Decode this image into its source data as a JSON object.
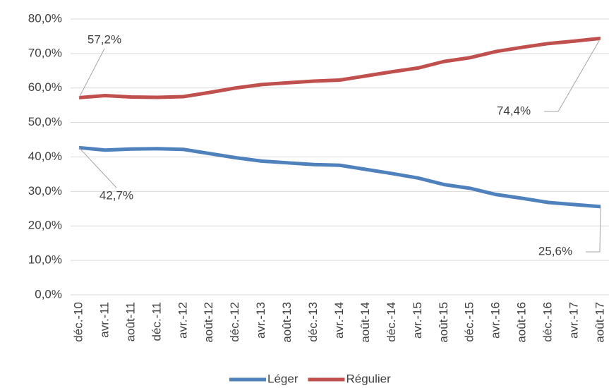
{
  "chart_data": {
    "type": "line",
    "categories": [
      "déc.-10",
      "avr.-11",
      "août-11",
      "déc.-11",
      "avr.-12",
      "août-12",
      "déc.-12",
      "avr.-13",
      "août-13",
      "déc.-13",
      "avr.-14",
      "août-14",
      "déc.-14",
      "avr.-15",
      "août-15",
      "déc.-15",
      "avr.-16",
      "août-16",
      "déc.-16",
      "avr.-17",
      "août-17"
    ],
    "series": [
      {
        "name": "Léger",
        "color": "#4f81bd",
        "values": [
          42.7,
          42.0,
          42.3,
          42.4,
          42.2,
          41.0,
          39.8,
          38.8,
          38.3,
          37.8,
          37.6,
          36.4,
          35.2,
          33.9,
          32.0,
          30.9,
          29.1,
          28.0,
          26.8,
          26.2,
          25.6
        ],
        "value_labels": [
          "42,7%",
          null,
          null,
          null,
          null,
          null,
          null,
          null,
          null,
          null,
          null,
          null,
          null,
          null,
          null,
          null,
          null,
          null,
          null,
          null,
          "25,6%"
        ]
      },
      {
        "name": "Régulier",
        "color": "#c0504d",
        "values": [
          57.2,
          57.8,
          57.4,
          57.3,
          57.5,
          58.7,
          60.0,
          61.0,
          61.5,
          62.0,
          62.3,
          63.5,
          64.7,
          65.8,
          67.7,
          68.8,
          70.6,
          71.8,
          72.9,
          73.6,
          74.4
        ],
        "value_labels": [
          "57,2%",
          null,
          null,
          null,
          null,
          null,
          null,
          null,
          null,
          null,
          null,
          null,
          null,
          null,
          null,
          null,
          null,
          null,
          null,
          null,
          "74,4%"
        ]
      }
    ],
    "ylim": [
      0,
      80
    ],
    "yticks": [
      {
        "value": 0,
        "label": "0,0%"
      },
      {
        "value": 10,
        "label": "10,0%"
      },
      {
        "value": 20,
        "label": "20,0%"
      },
      {
        "value": 30,
        "label": "30,0%"
      },
      {
        "value": 40,
        "label": "40,0%"
      },
      {
        "value": 50,
        "label": "50,0%"
      },
      {
        "value": 60,
        "label": "60,0%"
      },
      {
        "value": 70,
        "label": "70,0%"
      },
      {
        "value": 80,
        "label": "80,0%"
      }
    ],
    "grid": true,
    "legend": "bottom"
  }
}
